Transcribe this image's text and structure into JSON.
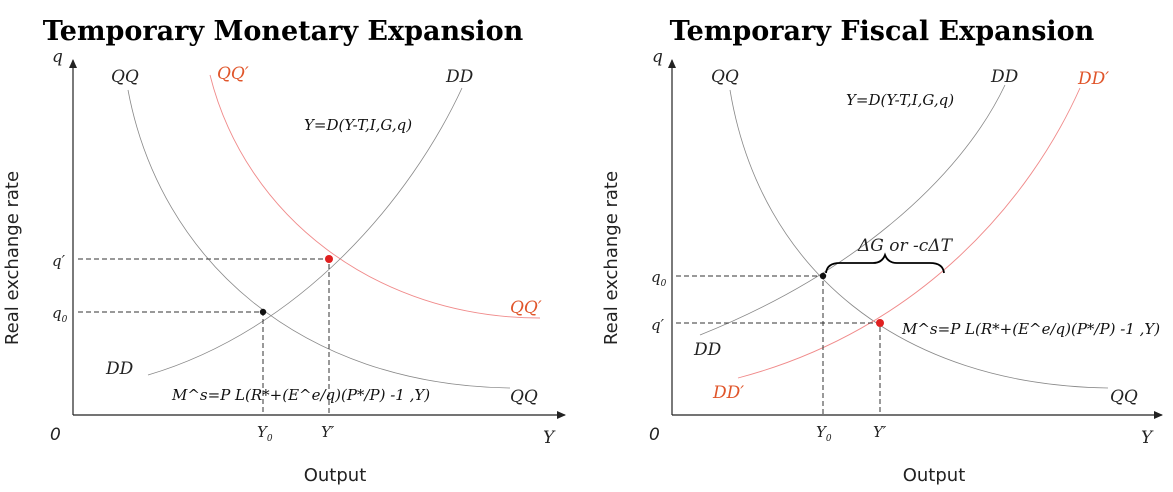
{
  "panels": [
    {
      "title": "Temporary Monetary Expansion",
      "y_axis_symbol": "q",
      "x_axis_symbol": "Y",
      "origin": "0",
      "y_axis_label": "Real exchange rate",
      "x_axis_label": "Output",
      "tick_labels": {
        "q_prime": "q′",
        "q0": "q",
        "q0_sub": "0",
        "y0": "Y",
        "y0_sub": "0",
        "y_prime": "Y′"
      },
      "curve_labels": {
        "qq_top": "QQ",
        "qq_prime_top": "QQ′",
        "dd_top": "DD",
        "qq_prime_right": "QQ′",
        "dd_bottom": "DD",
        "qq_bottom": "QQ"
      },
      "dd_equation": "Y=D(Y-T,I,G,q)",
      "money_equation": "M^s=P L(R*+(E^e/q)(P*/P) -1 ,Y)"
    },
    {
      "title": "Temporary Fiscal Expansion",
      "y_axis_symbol": "q",
      "x_axis_symbol": "Y",
      "origin": "0",
      "y_axis_label": "Real exchange rate",
      "x_axis_label": "Output",
      "tick_labels": {
        "q0": "q",
        "q0_sub": "0",
        "q_prime": "q′",
        "y0": "Y",
        "y0_sub": "0",
        "y_prime": "Y′"
      },
      "curve_labels": {
        "qq_top": "QQ",
        "dd_top": "DD",
        "dd_prime_top": "DD′",
        "dd_bottom": "DD",
        "dd_prime_bottom": "DD′",
        "qq_bottom": "QQ"
      },
      "dd_equation": "Y=D(Y-T,I,G,q)",
      "shift_annotation": "ΔG or -cΔT",
      "money_equation": "M^s=P L(R*+(E^e/q)(P*/P) -1 ,Y)"
    }
  ],
  "colors": {
    "shifted_curve": "#e0552a",
    "equilibrium_new": "#e02020",
    "equilibrium_old": "#111111"
  }
}
